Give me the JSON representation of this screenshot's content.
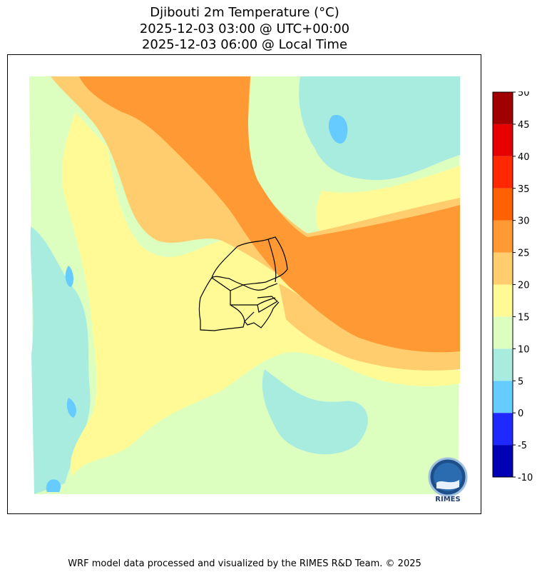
{
  "title": {
    "line1": "Djibouti 2m Temperature (°C)",
    "line2": "2025-12-03 03:00 @ UTC+00:00",
    "line3": "2025-12-03 06:00 @ Local Time"
  },
  "footer": "WRF model data processed and visualized by the RIMES R&D Team. © 2025",
  "logo": {
    "text": "RIMES",
    "icon": "rimes-logo-icon"
  },
  "chart_data": {
    "type": "heatmap",
    "title": "Djibouti 2m Temperature (°C)",
    "subtitle": [
      "2025-12-03 03:00 @ UTC+00:00",
      "2025-12-03 06:00 @ Local Time"
    ],
    "colorbar": {
      "levels": [
        -10,
        -5,
        0,
        5,
        10,
        15,
        20,
        25,
        30,
        35,
        40,
        45,
        50
      ],
      "colors": [
        "#0000b4",
        "#1e28ff",
        "#66ccff",
        "#a8ece0",
        "#dcffc0",
        "#fffa96",
        "#ffcc6e",
        "#ff9933",
        "#ff6000",
        "#ff2800",
        "#e60000",
        "#a00000"
      ],
      "tick_labels": [
        "-10",
        "-5",
        "0",
        "5",
        "10",
        "15",
        "20",
        "25",
        "30",
        "35",
        "40",
        "45",
        "50"
      ]
    },
    "grid": false,
    "legend_placement": "right"
  }
}
